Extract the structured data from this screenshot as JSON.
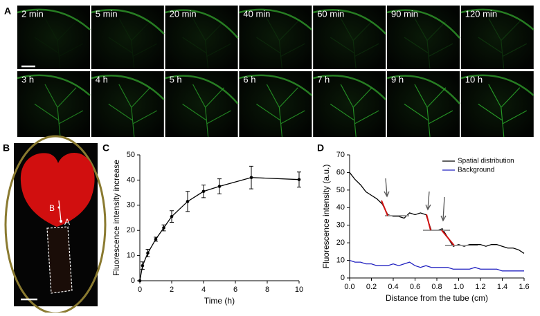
{
  "panels": {
    "labels": [
      "A",
      "B",
      "C",
      "D"
    ]
  },
  "images": {
    "row1": [
      "2 min",
      "5 min",
      "20 min",
      "40 min",
      "60 min",
      "90 min",
      "120 min"
    ],
    "row2": [
      "3 h",
      "4 h",
      "5 h",
      "6 h",
      "7 h",
      "9 h",
      "10 h"
    ]
  },
  "leaf": {
    "labels": [
      "B",
      "A"
    ]
  },
  "chart_data": [
    {
      "type": "line",
      "ylabel": "Fluorescence intensity increase",
      "xlabel": "Time (h)",
      "color": "#000000",
      "x": [
        0,
        0.17,
        0.5,
        1,
        1.5,
        2,
        3,
        4,
        5,
        7,
        10
      ],
      "values": [
        0,
        6,
        11,
        16.5,
        21,
        25.5,
        31.5,
        35.5,
        37.5,
        41,
        40.2
      ],
      "errors": [
        0,
        1.5,
        1.5,
        0.8,
        1.2,
        2.3,
        4,
        2.5,
        3,
        4.5,
        3
      ],
      "xlim": [
        0,
        10
      ],
      "xticks": [
        0,
        2,
        4,
        6,
        8,
        10
      ],
      "ylim": [
        0,
        50
      ],
      "yticks": [
        0,
        10,
        20,
        30,
        40,
        50
      ]
    },
    {
      "type": "line",
      "ylabel": "Fluorescence intensity (a.u.)",
      "xlabel": "Distance from the tube (cm)",
      "legend": "upper right",
      "x": [
        0,
        0.05,
        0.1,
        0.15,
        0.2,
        0.25,
        0.3,
        0.35,
        0.4,
        0.45,
        0.5,
        0.55,
        0.6,
        0.65,
        0.7,
        0.75,
        0.8,
        0.85,
        0.9,
        0.95,
        1.0,
        1.05,
        1.1,
        1.15,
        1.2,
        1.25,
        1.3,
        1.35,
        1.4,
        1.45,
        1.5,
        1.55,
        1.6
      ],
      "series": [
        {
          "name": "Spatial distribution",
          "color": "#000000",
          "values": [
            60,
            56,
            53,
            49,
            47,
            45,
            42,
            36,
            35,
            35,
            34,
            37,
            36,
            37,
            36,
            27,
            27,
            28,
            23,
            18,
            19,
            18,
            19,
            19,
            19,
            18,
            19,
            19,
            18,
            17,
            17,
            16,
            14
          ]
        },
        {
          "name": "Background",
          "color": "#2020c0",
          "values": [
            10,
            9,
            9,
            8,
            8,
            7,
            7,
            7,
            8,
            7,
            8,
            9,
            7,
            6,
            7,
            6,
            6,
            6,
            6,
            5,
            5,
            5,
            5,
            6,
            5,
            5,
            5,
            5,
            4,
            4,
            4,
            4,
            4
          ]
        }
      ],
      "xlim": [
        0,
        1.6
      ],
      "xticks": [
        {
          "value": 0,
          "label": "0.0"
        },
        0.2,
        0.4,
        0.6,
        0.8,
        {
          "value": 1,
          "label": "1.0"
        },
        1.2,
        1.4,
        1.6
      ],
      "ylim": [
        0,
        70
      ],
      "yticks": [
        0,
        10,
        20,
        30,
        40,
        50,
        60,
        70
      ]
    }
  ]
}
